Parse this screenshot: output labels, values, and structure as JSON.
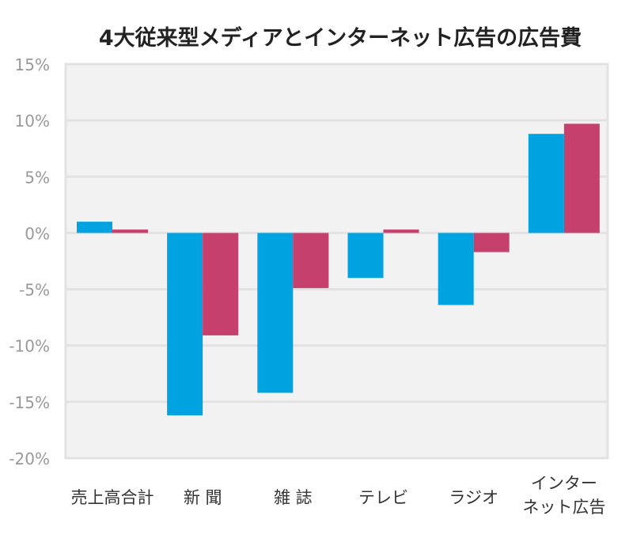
{
  "chart_data": {
    "type": "bar",
    "title": "4大従来型メディアとインターネット広告の広告費",
    "categories": [
      "売上高合計",
      "新 聞",
      "雑 誌",
      "テレビ",
      "ラジオ",
      "インター\nネット広告"
    ],
    "series": [
      {
        "values": [
          1.0,
          -16.2,
          -14.2,
          -4.0,
          -6.4,
          8.8
        ],
        "color": "#00a3e0"
      },
      {
        "values": [
          0.3,
          -9.1,
          -4.9,
          0.3,
          -1.7,
          9.7
        ],
        "color": "#c5406c"
      }
    ],
    "ylim": [
      -20,
      15
    ],
    "yticks": [
      "15%",
      "10%",
      "5%",
      "0%",
      "-5%",
      "-10%",
      "-15%",
      "-20%"
    ],
    "ytick_values": [
      15,
      10,
      5,
      0,
      -5,
      -10,
      -15,
      -20
    ],
    "grid": true,
    "background": "#f2f2f2"
  }
}
